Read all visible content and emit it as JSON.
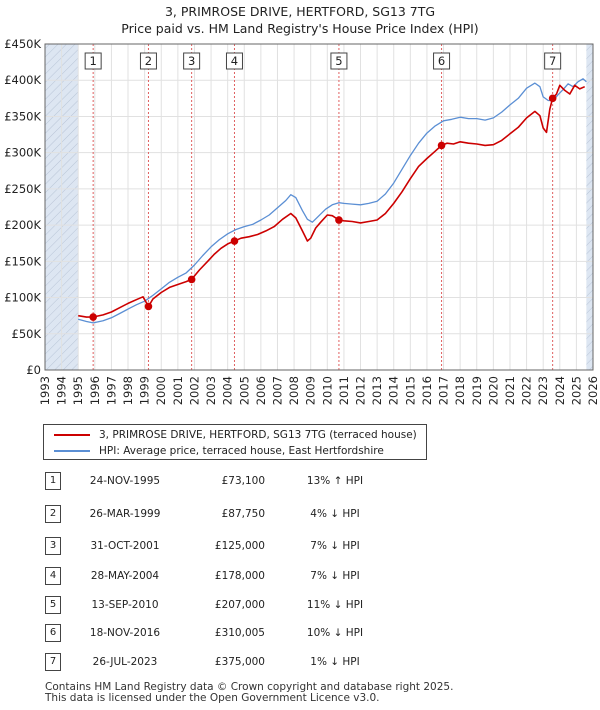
{
  "title_line1": "3, PRIMROSE DRIVE, HERTFORD, SG13 7TG",
  "title_line2": "Price paid vs. HM Land Registry's House Price Index (HPI)",
  "legend": {
    "property": "3, PRIMROSE DRIVE, HERTFORD, SG13 7TG (terraced house)",
    "hpi": "HPI: Average price, terraced house, East Hertfordshire"
  },
  "colors": {
    "property": "#cc0000",
    "hpi": "#5b8fd4",
    "shade": "#dde6f2",
    "grid": "#e1e1e1",
    "marker_line": "#e06060"
  },
  "sales": [
    {
      "num": "1",
      "date": "24-NOV-1995",
      "price": "£73,100",
      "hpi": "13% ↑ HPI"
    },
    {
      "num": "2",
      "date": "26-MAR-1999",
      "price": "£87,750",
      "hpi": "4% ↓ HPI"
    },
    {
      "num": "3",
      "date": "31-OCT-2001",
      "price": "£125,000",
      "hpi": "7% ↓ HPI"
    },
    {
      "num": "4",
      "date": "28-MAY-2004",
      "price": "£178,000",
      "hpi": "7% ↓ HPI"
    },
    {
      "num": "5",
      "date": "13-SEP-2010",
      "price": "£207,000",
      "hpi": "11% ↓ HPI"
    },
    {
      "num": "6",
      "date": "18-NOV-2016",
      "price": "£310,005",
      "hpi": "10% ↓ HPI"
    },
    {
      "num": "7",
      "date": "26-JUL-2023",
      "price": "£375,000",
      "hpi": "1% ↓ HPI"
    }
  ],
  "footer": {
    "line1": "Contains HM Land Registry data © Crown copyright and database right 2025.",
    "line2": "This data is licensed under the Open Government Licence v3.0."
  },
  "chart_data": {
    "type": "line",
    "title": "3, PRIMROSE DRIVE, HERTFORD, SG13 7TG — Price paid vs. HM Land Registry's House Price Index (HPI)",
    "xlabel": "",
    "ylabel": "",
    "xlim": [
      1993,
      2026
    ],
    "ylim": [
      0,
      450000
    ],
    "x_ticks": [
      1993,
      1994,
      1995,
      1996,
      1997,
      1998,
      1999,
      2000,
      2001,
      2002,
      2003,
      2004,
      2005,
      2006,
      2007,
      2008,
      2009,
      2010,
      2011,
      2012,
      2013,
      2014,
      2015,
      2016,
      2017,
      2018,
      2019,
      2020,
      2021,
      2022,
      2023,
      2024,
      2025,
      2026
    ],
    "y_ticks": [
      0,
      50000,
      100000,
      150000,
      200000,
      250000,
      300000,
      350000,
      400000,
      450000
    ],
    "y_tick_labels": [
      "£0",
      "£50K",
      "£100K",
      "£150K",
      "£200K",
      "£250K",
      "£300K",
      "£350K",
      "£400K",
      "£450K"
    ],
    "shaded_before": 1995.0,
    "shaded_after": 2025.6,
    "grid": true,
    "series": [
      {
        "name": "3, PRIMROSE DRIVE, HERTFORD, SG13 7TG (terraced house)",
        "x": [
          1995.0,
          1995.5,
          1995.9,
          1996.5,
          1997.0,
          1997.5,
          1998.0,
          1998.5,
          1998.9,
          1999.23,
          1999.5,
          2000.0,
          2000.5,
          2001.0,
          2001.5,
          2001.83,
          2002.3,
          2002.8,
          2003.2,
          2003.6,
          2004.0,
          2004.41,
          2004.8,
          2005.3,
          2005.8,
          2006.3,
          2006.8,
          2007.3,
          2007.8,
          2008.1,
          2008.5,
          2008.8,
          2009.0,
          2009.3,
          2009.6,
          2010.0,
          2010.3,
          2010.7,
          2011.0,
          2011.5,
          2012.0,
          2012.5,
          2013.0,
          2013.5,
          2014.0,
          2014.5,
          2015.0,
          2015.5,
          2016.0,
          2016.5,
          2016.88,
          2017.2,
          2017.6,
          2018.0,
          2018.5,
          2019.0,
          2019.5,
          2020.0,
          2020.5,
          2021.0,
          2021.5,
          2022.0,
          2022.5,
          2022.8,
          2023.0,
          2023.2,
          2023.4,
          2023.57,
          2023.8,
          2024.0,
          2024.3,
          2024.6,
          2024.9,
          2025.2,
          2025.5
        ],
        "values": [
          75000,
          73000,
          73100,
          76000,
          80000,
          86000,
          92000,
          97000,
          101000,
          87750,
          98000,
          107000,
          114000,
          118000,
          122000,
          125000,
          138000,
          150000,
          160000,
          168000,
          174000,
          178000,
          182000,
          184000,
          187000,
          192000,
          198000,
          208000,
          216000,
          210000,
          192000,
          178000,
          182000,
          196000,
          204000,
          214000,
          213000,
          207000,
          206000,
          205000,
          203000,
          205000,
          207000,
          216000,
          230000,
          246000,
          264000,
          281000,
          292000,
          302000,
          310005,
          313000,
          312000,
          315000,
          313000,
          312000,
          310000,
          311000,
          317000,
          326000,
          335000,
          348000,
          357000,
          351000,
          334000,
          328000,
          360000,
          375000,
          381000,
          393000,
          386000,
          381000,
          393000,
          388000,
          391000
        ]
      },
      {
        "name": "HPI: Average price, terraced house, East Hertfordshire",
        "x": [
          1995.0,
          1995.5,
          1995.9,
          1996.5,
          1997.0,
          1997.5,
          1998.0,
          1998.5,
          1999.0,
          1999.5,
          2000.0,
          2000.5,
          2001.0,
          2001.5,
          2002.0,
          2002.5,
          2003.0,
          2003.5,
          2004.0,
          2004.5,
          2005.0,
          2005.5,
          2006.0,
          2006.5,
          2007.0,
          2007.5,
          2007.8,
          2008.1,
          2008.5,
          2008.8,
          2009.1,
          2009.5,
          2009.9,
          2010.3,
          2010.7,
          2011.0,
          2011.5,
          2012.0,
          2012.5,
          2013.0,
          2013.5,
          2014.0,
          2014.5,
          2015.0,
          2015.5,
          2016.0,
          2016.5,
          2017.0,
          2017.5,
          2018.0,
          2018.5,
          2019.0,
          2019.5,
          2020.0,
          2020.5,
          2021.0,
          2021.5,
          2022.0,
          2022.5,
          2022.8,
          2023.0,
          2023.3,
          2023.6,
          2023.9,
          2024.2,
          2024.5,
          2024.8,
          2025.1,
          2025.4,
          2025.6
        ],
        "values": [
          70000,
          67000,
          65000,
          68000,
          72000,
          78000,
          84000,
          90000,
          95000,
          103000,
          112000,
          121000,
          128000,
          134000,
          145000,
          158000,
          170000,
          180000,
          188000,
          194000,
          198000,
          201000,
          207000,
          214000,
          224000,
          234000,
          242000,
          238000,
          220000,
          208000,
          204000,
          213000,
          222000,
          228000,
          231000,
          230000,
          229000,
          228000,
          230000,
          233000,
          243000,
          258000,
          277000,
          296000,
          313000,
          327000,
          337000,
          344000,
          346000,
          349000,
          347000,
          347000,
          345000,
          348000,
          356000,
          366000,
          375000,
          389000,
          396000,
          391000,
          377000,
          372000,
          372000,
          380000,
          387000,
          395000,
          391000,
          398000,
          402000,
          398000
        ]
      }
    ],
    "sale_markers": [
      {
        "label": "1",
        "x": 1995.9,
        "value": 73100
      },
      {
        "label": "2",
        "x": 1999.23,
        "value": 87750
      },
      {
        "label": "3",
        "x": 2001.83,
        "value": 125000
      },
      {
        "label": "4",
        "x": 2004.41,
        "value": 178000
      },
      {
        "label": "5",
        "x": 2010.7,
        "value": 207000
      },
      {
        "label": "6",
        "x": 2016.88,
        "value": 310005
      },
      {
        "label": "7",
        "x": 2023.57,
        "value": 375000
      }
    ]
  }
}
